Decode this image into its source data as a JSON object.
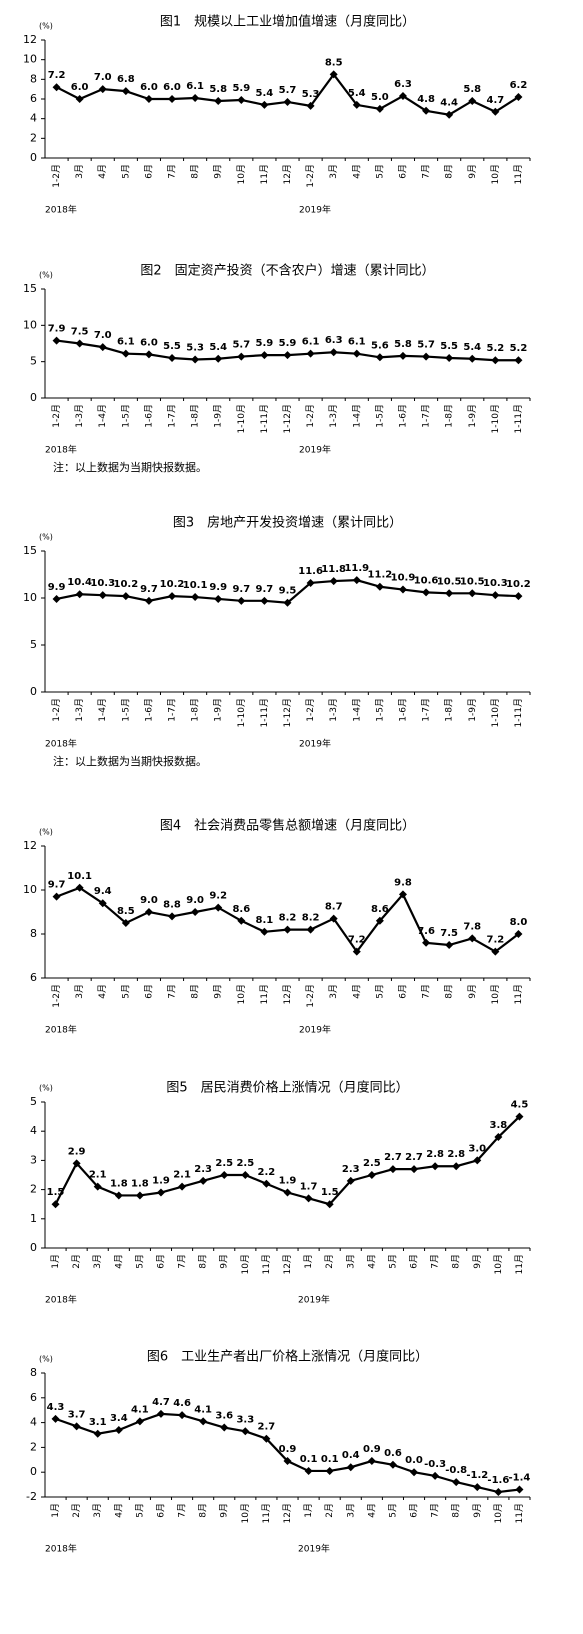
{
  "chart_data": [
    {
      "type": "line",
      "title": "图1　规模以上工业增加值增速（月度同比）",
      "unit": "(%)",
      "categories": [
        "1-2月",
        "3月",
        "4月",
        "5月",
        "6月",
        "7月",
        "8月",
        "9月",
        "10月",
        "11月",
        "12月",
        "1-2月",
        "3月",
        "4月",
        "5月",
        "6月",
        "7月",
        "8月",
        "9月",
        "10月",
        "11月"
      ],
      "values": [
        7.2,
        6.0,
        7.0,
        6.8,
        6.0,
        6.0,
        6.1,
        5.8,
        5.9,
        5.4,
        5.7,
        5.3,
        8.5,
        5.4,
        5.0,
        6.3,
        4.8,
        4.4,
        5.8,
        4.7,
        6.2
      ],
      "value_labels": [
        "7.2",
        "6.0",
        "7.0",
        "6.8",
        "6.0",
        "6.0",
        "6.1",
        "5.8",
        "5.9",
        "5.4",
        "5.7",
        "5.3",
        "8.5",
        "5.4",
        "5.0",
        "6.3",
        "4.8",
        "4.4",
        "5.8",
        "4.7",
        "6.2"
      ],
      "year_labels": [
        "2018年",
        "2019年"
      ],
      "color": "#000000",
      "ylim": [
        0,
        12
      ],
      "yticks": [
        0,
        2,
        4,
        6,
        8,
        10,
        12
      ]
    },
    {
      "type": "line",
      "title": "图2　固定资产投资（不含农户）增速（累计同比）",
      "unit": "(%)",
      "categories": [
        "1-2月",
        "1-3月",
        "1-4月",
        "1-5月",
        "1-6月",
        "1-7月",
        "1-8月",
        "1-9月",
        "1-10月",
        "1-11月",
        "1-12月",
        "1-2月",
        "1-3月",
        "1-4月",
        "1-5月",
        "1-6月",
        "1-7月",
        "1-8月",
        "1-9月",
        "1-10月",
        "1-11月"
      ],
      "values": [
        7.9,
        7.5,
        7.0,
        6.1,
        6.0,
        5.5,
        5.3,
        5.4,
        5.7,
        5.9,
        5.9,
        6.1,
        6.3,
        6.1,
        5.6,
        5.8,
        5.7,
        5.5,
        5.4,
        5.2,
        5.2
      ],
      "value_labels": [
        "7.9",
        "7.5",
        "7.0",
        "6.1",
        "6.0",
        "5.5",
        "5.3",
        "5.4",
        "5.7",
        "5.9",
        "5.9",
        "6.1",
        "6.3",
        "6.1",
        "5.6",
        "5.8",
        "5.7",
        "5.5",
        "5.4",
        "5.2",
        "5.2"
      ],
      "year_labels": [
        "2018年",
        "2019年"
      ],
      "note": "注：以上数据为当期快报数据。",
      "color": "#000000",
      "ylim": [
        0,
        15
      ],
      "yticks": [
        0,
        5,
        10,
        15
      ]
    },
    {
      "type": "line",
      "title": "图3　房地产开发投资增速（累计同比）",
      "unit": "(%)",
      "categories": [
        "1-2月",
        "1-3月",
        "1-4月",
        "1-5月",
        "1-6月",
        "1-7月",
        "1-8月",
        "1-9月",
        "1-10月",
        "1-11月",
        "1-12月",
        "1-2月",
        "1-3月",
        "1-4月",
        "1-5月",
        "1-6月",
        "1-7月",
        "1-8月",
        "1-9月",
        "1-10月",
        "1-11月"
      ],
      "values": [
        9.9,
        10.4,
        10.3,
        10.2,
        9.7,
        10.2,
        10.1,
        9.9,
        9.7,
        9.7,
        9.5,
        11.6,
        11.8,
        11.9,
        11.2,
        10.9,
        10.6,
        10.5,
        10.5,
        10.3,
        10.2
      ],
      "value_labels": [
        "9.9",
        "10.4",
        "10.3",
        "10.2",
        "9.7",
        "10.2",
        "10.1",
        "9.9",
        "9.7",
        "9.7",
        "9.5",
        "11.6",
        "11.8",
        "11.9",
        "11.2",
        "10.9",
        "10.6",
        "10.5",
        "10.5",
        "10.3",
        "10.2"
      ],
      "year_labels": [
        "2018年",
        "2019年"
      ],
      "note": "注：以上数据为当期快报数据。",
      "color": "#000000",
      "ylim": [
        0,
        15
      ],
      "yticks": [
        0,
        5,
        10,
        15
      ]
    },
    {
      "type": "line",
      "title": "图4　社会消费品零售总额增速（月度同比）",
      "unit": "(%)",
      "categories": [
        "1-2月",
        "3月",
        "4月",
        "5月",
        "6月",
        "7月",
        "8月",
        "9月",
        "10月",
        "11月",
        "12月",
        "1-2月",
        "3月",
        "4月",
        "5月",
        "6月",
        "7月",
        "8月",
        "9月",
        "10月",
        "11月"
      ],
      "values": [
        9.7,
        10.1,
        9.4,
        8.5,
        9.0,
        8.8,
        9.0,
        9.2,
        8.6,
        8.1,
        8.2,
        8.2,
        8.7,
        7.2,
        8.6,
        9.8,
        7.6,
        7.5,
        7.8,
        7.2,
        8.0
      ],
      "value_labels": [
        "9.7",
        "10.1",
        "9.4",
        "8.5",
        "9.0",
        "8.8",
        "9.0",
        "9.2",
        "8.6",
        "8.1",
        "8.2",
        "8.2",
        "8.7",
        "7.2",
        "8.6",
        "9.8",
        "7.6",
        "7.5",
        "7.8",
        "7.2",
        "8.0"
      ],
      "year_labels": [
        "2018年",
        "2019年"
      ],
      "color": "#000000",
      "ylim": [
        6,
        12
      ],
      "yticks": [
        6,
        8,
        10,
        12
      ]
    },
    {
      "type": "line",
      "title": "图5　居民消费价格上涨情况（月度同比）",
      "unit": "(%)",
      "categories": [
        "1月",
        "2月",
        "3月",
        "4月",
        "5月",
        "6月",
        "7月",
        "8月",
        "9月",
        "10月",
        "11月",
        "12月",
        "1月",
        "2月",
        "3月",
        "4月",
        "5月",
        "6月",
        "7月",
        "8月",
        "9月",
        "10月",
        "11月"
      ],
      "values": [
        1.5,
        2.9,
        2.1,
        1.8,
        1.8,
        1.9,
        2.1,
        2.3,
        2.5,
        2.5,
        2.2,
        1.9,
        1.7,
        1.5,
        2.3,
        2.5,
        2.7,
        2.7,
        2.8,
        2.8,
        3.0,
        3.8,
        4.5
      ],
      "value_labels": [
        "1.5",
        "2.9",
        "2.1",
        "1.8",
        "1.8",
        "1.9",
        "2.1",
        "2.3",
        "2.5",
        "2.5",
        "2.2",
        "1.9",
        "1.7",
        "1.5",
        "2.3",
        "2.5",
        "2.7",
        "2.7",
        "2.8",
        "2.8",
        "3.0",
        "3.8",
        "4.5"
      ],
      "year_labels": [
        "2018年",
        "2019年"
      ],
      "color": "#000000",
      "ylim": [
        0,
        5
      ],
      "yticks": [
        0,
        1,
        2,
        3,
        4,
        5
      ]
    },
    {
      "type": "line",
      "title": "图6　工业生产者出厂价格上涨情况（月度同比）",
      "unit": "(%)",
      "categories": [
        "1月",
        "2月",
        "3月",
        "4月",
        "5月",
        "6月",
        "7月",
        "8月",
        "9月",
        "10月",
        "11月",
        "12月",
        "1月",
        "2月",
        "3月",
        "4月",
        "5月",
        "6月",
        "7月",
        "8月",
        "9月",
        "10月",
        "11月"
      ],
      "values": [
        4.3,
        3.7,
        3.1,
        3.4,
        4.1,
        4.7,
        4.6,
        4.1,
        3.6,
        3.3,
        2.7,
        0.9,
        0.1,
        0.1,
        0.4,
        0.9,
        0.6,
        0.0,
        -0.3,
        -0.8,
        -1.2,
        -1.6,
        -1.4
      ],
      "value_labels": [
        "4.3",
        "3.7",
        "3.1",
        "3.4",
        "4.1",
        "4.7",
        "4.6",
        "4.1",
        "3.6",
        "3.3",
        "2.7",
        "0.9",
        "0.1",
        "0.1",
        "0.4",
        "0.9",
        "0.6",
        "0.0",
        "-0.3",
        "-0.8",
        "-1.2",
        "-1.6",
        "-1.4"
      ],
      "year_labels": [
        "2018年",
        "2019年"
      ],
      "color": "#000000",
      "ylim": [
        -2,
        8
      ],
      "yticks": [
        -2,
        0,
        2,
        4,
        6,
        8
      ]
    }
  ]
}
